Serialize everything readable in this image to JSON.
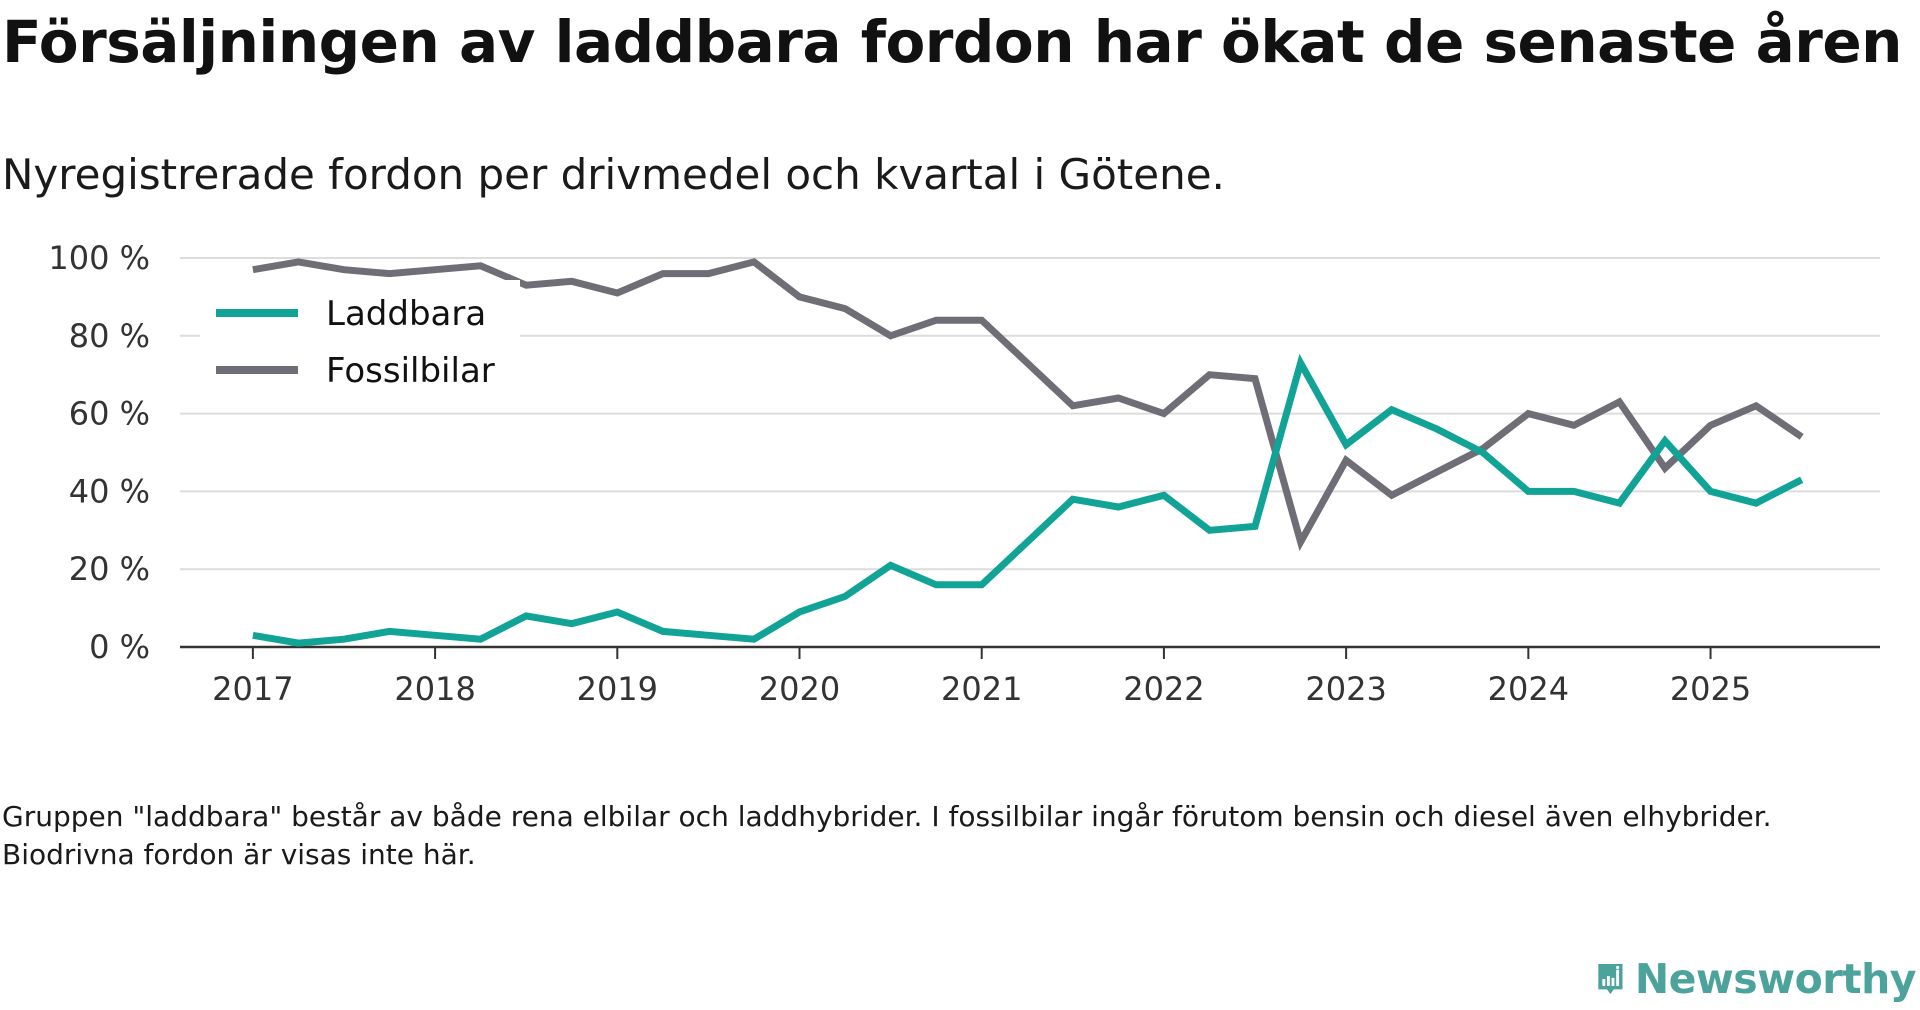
{
  "title": "Försäljningen av laddbara fordon har ökat de senaste åren",
  "subtitle": "Nyregistrerade fordon per drivmedel och kvartal i Götene.",
  "note": "Gruppen \"laddbara\" består av både rena elbilar och laddhybrider. I fossilbilar ingår förutom bensin och diesel även elhybrider. Biodrivna fordon är visas inte här.",
  "brand": {
    "name": "Newsworthy",
    "color": "#4ba39b"
  },
  "chart_data": {
    "type": "line",
    "title": "Försäljningen av laddbara fordon har ökat de senaste åren",
    "xlabel": "",
    "ylabel": "",
    "x": [
      2017.0,
      2017.25,
      2017.5,
      2017.75,
      2018.0,
      2018.25,
      2018.5,
      2018.75,
      2019.0,
      2019.25,
      2019.5,
      2019.75,
      2020.0,
      2020.25,
      2020.5,
      2020.75,
      2021.0,
      2021.25,
      2021.5,
      2021.75,
      2022.0,
      2022.25,
      2022.5,
      2022.75,
      2023.0,
      2023.25,
      2023.5,
      2023.75,
      2024.0,
      2024.25,
      2024.5,
      2024.75,
      2025.0,
      2025.25,
      2025.5
    ],
    "xlim": [
      2016.6,
      2025.93
    ],
    "ylim": [
      0,
      100
    ],
    "x_ticks": [
      2017,
      2018,
      2019,
      2020,
      2021,
      2022,
      2023,
      2024,
      2025
    ],
    "x_tick_labels": [
      "2017",
      "2018",
      "2019",
      "2020",
      "2021",
      "2022",
      "2023",
      "2024",
      "2025"
    ],
    "y_ticks": [
      0,
      20,
      40,
      60,
      80,
      100
    ],
    "y_tick_labels": [
      "0 %",
      "20 %",
      "40 %",
      "60 %",
      "80 %",
      "100 %"
    ],
    "grid": true,
    "legend_position": "top-left",
    "series": [
      {
        "name": "Laddbara",
        "color": "#12a397",
        "values": [
          3,
          1,
          2,
          4,
          3,
          2,
          8,
          6,
          9,
          4,
          3,
          2,
          9,
          13,
          21,
          16,
          16,
          27,
          38,
          36,
          39,
          30,
          31,
          73,
          52,
          61,
          56,
          50,
          40,
          40,
          37,
          53,
          40,
          37,
          43
        ]
      },
      {
        "name": "Fossilbilar",
        "color": "#6f6e76",
        "values": [
          97,
          99,
          97,
          96,
          97,
          98,
          93,
          94,
          91,
          96,
          96,
          99,
          90,
          87,
          80,
          84,
          84,
          73,
          62,
          64,
          60,
          70,
          69,
          27,
          48,
          39,
          45,
          51,
          60,
          57,
          63,
          46,
          57,
          62,
          54
        ]
      }
    ]
  }
}
